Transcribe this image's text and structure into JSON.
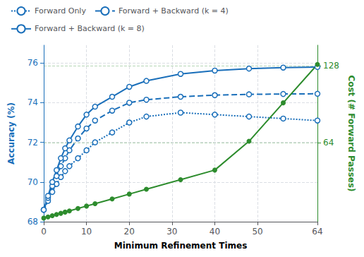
{
  "chart_data": {
    "type": "line",
    "xlabel": "Minimum Refinement Times",
    "ylabel": "Accuracy (%)",
    "y2label": "Cost (# Forward Passes)",
    "x": [
      0,
      1,
      2,
      3,
      4,
      5,
      6,
      8,
      10,
      12,
      16,
      20,
      24,
      32,
      40,
      48,
      56,
      64
    ],
    "xlim": [
      0,
      64
    ],
    "xticks": [
      0,
      10,
      20,
      30,
      40,
      50,
      64
    ],
    "ylim": [
      68.0,
      76.9
    ],
    "yticks": [
      68,
      70,
      72,
      74,
      76
    ],
    "y2lim": [
      -2,
      145
    ],
    "y2ticks": [
      64,
      128
    ],
    "grid": true,
    "legend": "top",
    "series": [
      {
        "name": "Forward Only",
        "color": "#1a6fba",
        "marker": "circle",
        "line_style": "dotted",
        "values": [
          68.6,
          69.05,
          69.5,
          69.9,
          70.25,
          70.55,
          70.8,
          71.2,
          71.6,
          72.0,
          72.5,
          73.0,
          73.3,
          73.5,
          73.4,
          73.3,
          73.2,
          73.1
        ]
      },
      {
        "name": "Forward + Backward (k = 4)",
        "color": "#1a6fba",
        "marker": "circle",
        "line_style": "dashed",
        "values": [
          68.6,
          69.2,
          69.8,
          70.3,
          70.8,
          71.2,
          71.6,
          72.2,
          72.7,
          73.1,
          73.6,
          74.0,
          74.15,
          74.3,
          74.38,
          74.42,
          74.44,
          74.45
        ]
      },
      {
        "name": "Forward + Backward (k = 8)",
        "color": "#1a6fba",
        "marker": "circle",
        "line_style": "solid",
        "values": [
          68.6,
          69.3,
          70.0,
          70.6,
          71.2,
          71.7,
          72.1,
          72.8,
          73.4,
          73.8,
          74.3,
          74.8,
          75.1,
          75.45,
          75.62,
          75.72,
          75.77,
          75.8
        ]
      },
      {
        "color": "#2d8c2d",
        "marker": "circle",
        "line_style": "solid",
        "axis": "y2",
        "values": [
          1,
          2,
          3,
          4,
          5,
          6,
          7,
          9,
          11,
          13,
          17,
          21,
          25,
          33,
          41,
          65,
          97,
          129
        ]
      }
    ]
  }
}
